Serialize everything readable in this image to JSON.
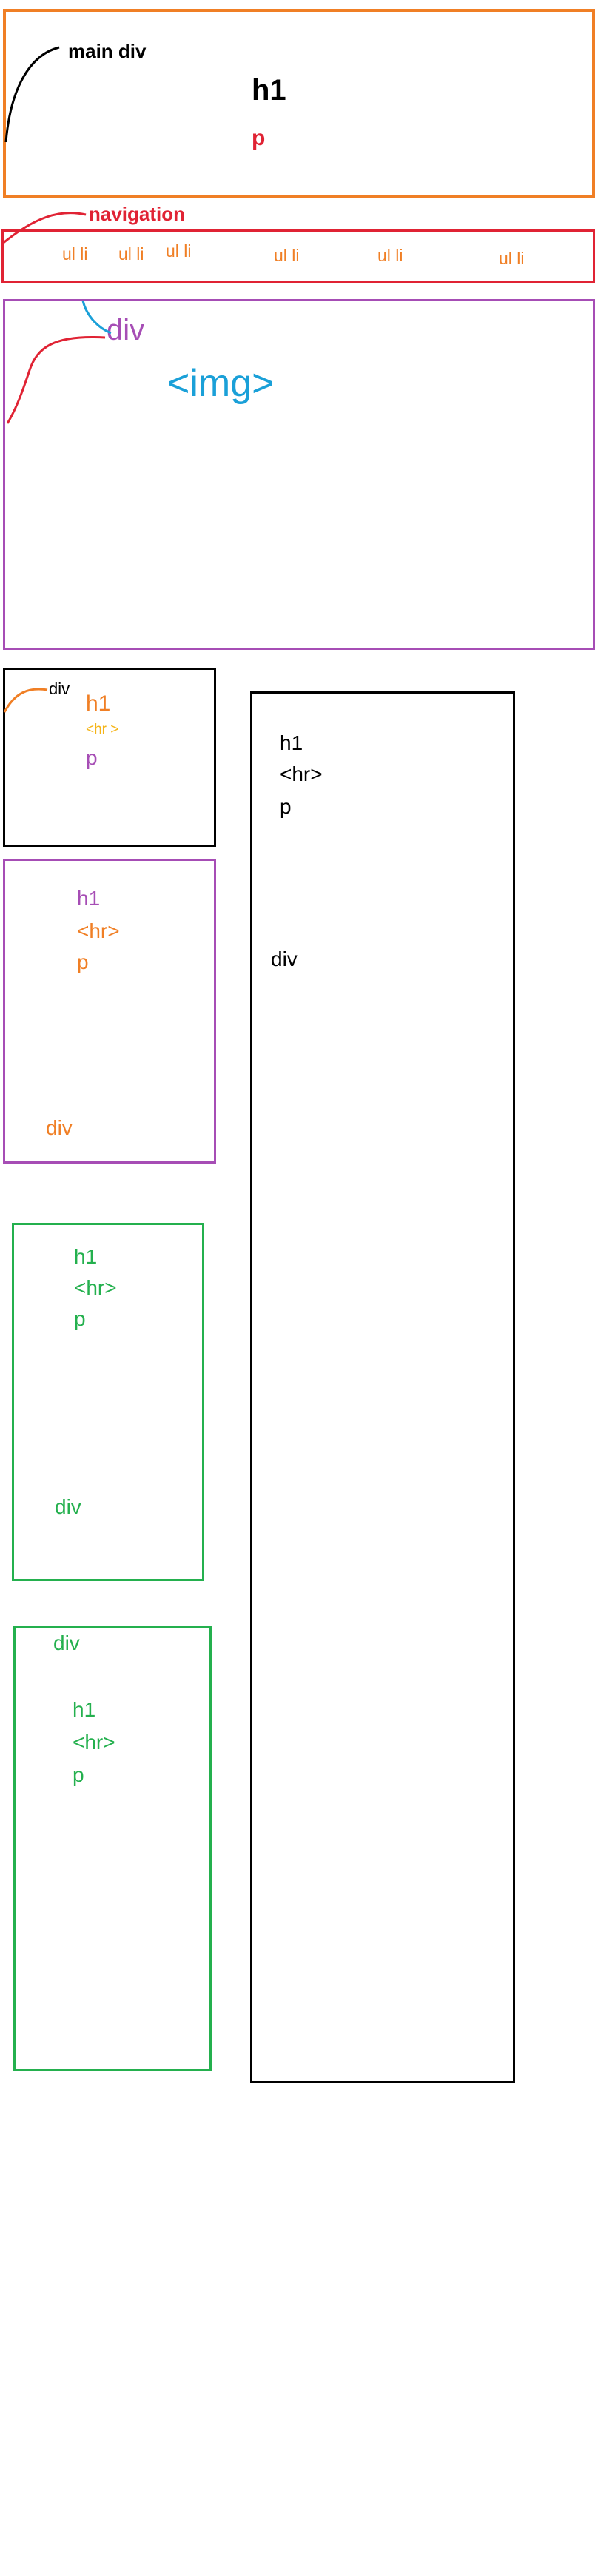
{
  "colors": {
    "orange": "#F07F25",
    "red": "#E02334",
    "purple": "#A64DB5",
    "blue": "#1AA0D8",
    "green": "#24B04E",
    "black": "#000000",
    "yellow": "#F5B417"
  },
  "header": {
    "annotation": "main div",
    "h1": "h1",
    "p": "p"
  },
  "navigation": {
    "annotation": "navigation",
    "items": [
      "ul li",
      "ul li",
      "ul li",
      "ul li",
      "ul li",
      "ul li"
    ]
  },
  "image_section": {
    "div_label": "div",
    "img_label": "<img>"
  },
  "card1": {
    "div_label": "div",
    "h1": "h1",
    "hr": "<hr >",
    "p": "p"
  },
  "card2": {
    "h1": "h1",
    "hr": "<hr>",
    "p": "p",
    "div_label": "div"
  },
  "card3": {
    "h1": "h1",
    "hr": "<hr>",
    "p": "p",
    "div_label": "div"
  },
  "card4": {
    "div_label": "div",
    "h1": "h1",
    "hr": "<hr>",
    "p": "p"
  },
  "sidebar": {
    "h1": "h1",
    "hr": "<hr>",
    "p": "p",
    "div_label": "div"
  }
}
